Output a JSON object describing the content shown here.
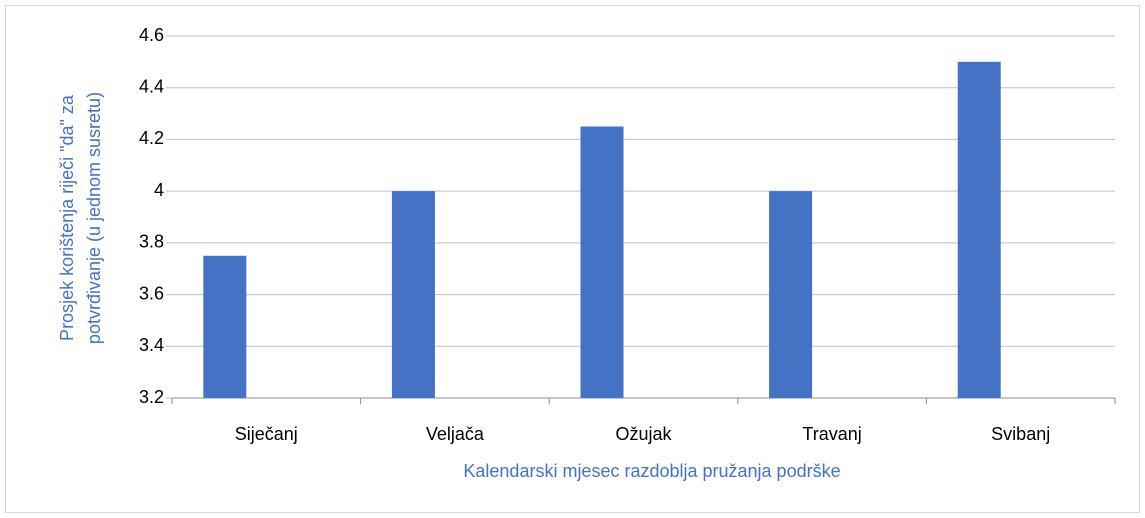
{
  "chart_data": {
    "type": "bar",
    "categories": [
      "Siječanj",
      "Veljača",
      "Ožujak",
      "Travanj",
      "Svibanj"
    ],
    "values": [
      3.75,
      4,
      4.25,
      4,
      4.5
    ],
    "color": "#4472c4",
    "ylim": [
      3.2,
      4.6
    ],
    "yticks": [
      3.2,
      3.4,
      3.6,
      3.8,
      4,
      4.2,
      4.4,
      4.6
    ],
    "grid": true,
    "xlabel": "Kalendarski mjesec razdoblja pružanja podrške",
    "ylabel": [
      "Prosjek korištenja riječi \"da\" za",
      "potvrđivanje (u jednom susretu)"
    ]
  }
}
